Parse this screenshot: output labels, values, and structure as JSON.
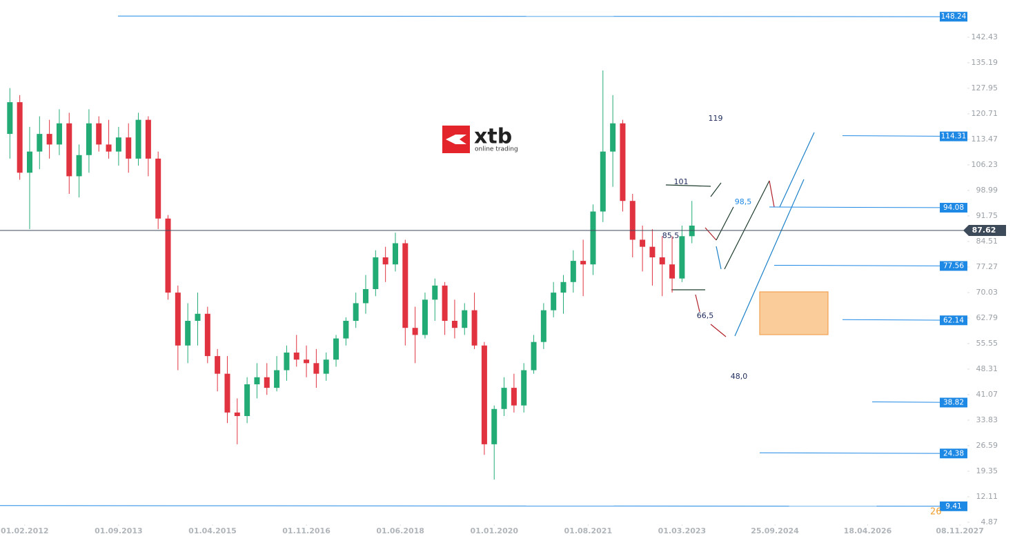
{
  "chart_data": {
    "type": "candlestick",
    "x": [
      "01.11.2011",
      "01.01.2012",
      "01.03.2012",
      "01.05.2012",
      "01.07.2012",
      "01.09.2012",
      "01.11.2012",
      "01.01.2013",
      "01.03.2013",
      "01.05.2013",
      "01.07.2013",
      "01.09.2013",
      "01.11.2013",
      "01.01.2014",
      "01.03.2014",
      "01.05.2014",
      "01.07.2014",
      "01.09.2014",
      "01.11.2014",
      "01.01.2015",
      "01.03.2015",
      "01.05.2015",
      "01.07.2015",
      "01.09.2015",
      "01.11.2015",
      "01.01.2016",
      "01.03.2016",
      "01.05.2016",
      "01.07.2016",
      "01.09.2016",
      "01.11.2016",
      "01.01.2017",
      "01.03.2017",
      "01.05.2017",
      "01.07.2017",
      "01.09.2017",
      "01.11.2017",
      "01.01.2018",
      "01.03.2018",
      "01.05.2018",
      "01.07.2018",
      "01.09.2018",
      "01.11.2018",
      "01.01.2019",
      "01.03.2019",
      "01.05.2019",
      "01.07.2019",
      "01.09.2019",
      "01.11.2019",
      "01.01.2020",
      "01.03.2020",
      "01.05.2020",
      "01.07.2020",
      "01.09.2020",
      "01.11.2020",
      "01.01.2021",
      "01.03.2021",
      "01.05.2021",
      "01.07.2021",
      "01.09.2021",
      "01.11.2021",
      "01.01.2022",
      "01.03.2022",
      "01.05.2022",
      "01.07.2022",
      "01.09.2022",
      "01.11.2022",
      "01.01.2023",
      "01.03.2023",
      "01.05.2023"
    ],
    "open": [
      115,
      124,
      104,
      110,
      115,
      112,
      118,
      103,
      109,
      118,
      112,
      110,
      114,
      108,
      119,
      108,
      91,
      70,
      55,
      62,
      64,
      52,
      47,
      36,
      35,
      44,
      46,
      43,
      48,
      53,
      51,
      50,
      47,
      51,
      57,
      62,
      67,
      71,
      80,
      78,
      84,
      60,
      58,
      68,
      72,
      62,
      60,
      65,
      55,
      27,
      37,
      43,
      38,
      48,
      56,
      65,
      70,
      73,
      79,
      78,
      93,
      110,
      118,
      96,
      85,
      83,
      80,
      78,
      74,
      86
    ],
    "high": [
      128,
      126,
      117,
      120,
      119,
      122,
      121,
      112,
      122,
      120,
      119,
      117,
      118,
      121,
      120,
      110,
      92,
      72,
      67,
      70,
      66,
      54,
      52,
      40,
      46,
      50,
      50,
      52,
      55,
      58,
      55,
      54,
      53,
      58,
      63,
      70,
      75,
      82,
      83,
      87,
      85,
      66,
      70,
      74,
      73,
      68,
      67,
      70,
      56,
      38,
      46,
      47,
      50,
      58,
      67,
      73,
      75,
      82,
      85,
      95,
      133,
      126,
      119,
      98,
      89,
      88,
      86,
      86,
      89,
      96
    ],
    "low": [
      108,
      102,
      88,
      105,
      108,
      109,
      98,
      97,
      104,
      110,
      108,
      106,
      104,
      106,
      103,
      88,
      68,
      48,
      50,
      55,
      50,
      42,
      33,
      27,
      33,
      40,
      41,
      42,
      45,
      49,
      46,
      43,
      45,
      49,
      55,
      60,
      64,
      69,
      73,
      76,
      55,
      50,
      57,
      62,
      58,
      57,
      58,
      54,
      24,
      17,
      35,
      36,
      36,
      47,
      54,
      63,
      64,
      70,
      69,
      75,
      90,
      100,
      93,
      80,
      76,
      72,
      69,
      70,
      73,
      84
    ],
    "close": [
      124,
      104,
      110,
      115,
      112,
      118,
      103,
      109,
      118,
      112,
      110,
      114,
      108,
      119,
      108,
      91,
      70,
      55,
      62,
      64,
      52,
      47,
      36,
      35,
      44,
      46,
      43,
      48,
      53,
      51,
      50,
      47,
      51,
      57,
      62,
      67,
      71,
      80,
      78,
      84,
      60,
      58,
      68,
      72,
      62,
      60,
      65,
      55,
      27,
      37,
      43,
      38,
      48,
      56,
      65,
      70,
      73,
      79,
      78,
      93,
      110,
      118,
      96,
      85,
      83,
      80,
      78,
      74,
      86,
      89
    ],
    "up_color": "#22ab75",
    "down_color": "#e0323f",
    "xlim": [
      "01.09.2011",
      "15.12.2027"
    ],
    "xticks": [
      "01.02.2012",
      "01.09.2013",
      "01.04.2015",
      "01.11.2016",
      "01.06.2018",
      "01.01.2020",
      "01.08.2021",
      "01.03.2023",
      "25.09.2024",
      "18.04.2026",
      "08.11.2027"
    ],
    "ylim": [
      4.28,
      152.0
    ],
    "yticks": [
      142.43,
      135.19,
      127.95,
      120.71,
      113.47,
      106.23,
      98.99,
      91.75,
      84.51,
      77.27,
      70.03,
      62.79,
      55.55,
      48.31,
      41.07,
      33.83,
      26.59,
      19.35,
      12.11,
      4.87
    ],
    "levels": [
      148.24,
      114.31,
      94.08,
      77.56,
      62.14,
      38.82,
      24.38,
      9.41
    ],
    "level_color": "#1e88e5",
    "current_price": 87.62,
    "current_color": "#3d4a5a",
    "annotations": [
      "119",
      "101",
      "98,5",
      "85,5",
      "66,5",
      "48,0"
    ],
    "partial_label": "26"
  },
  "logo": {
    "name": "xtb",
    "tagline": "online trading"
  }
}
